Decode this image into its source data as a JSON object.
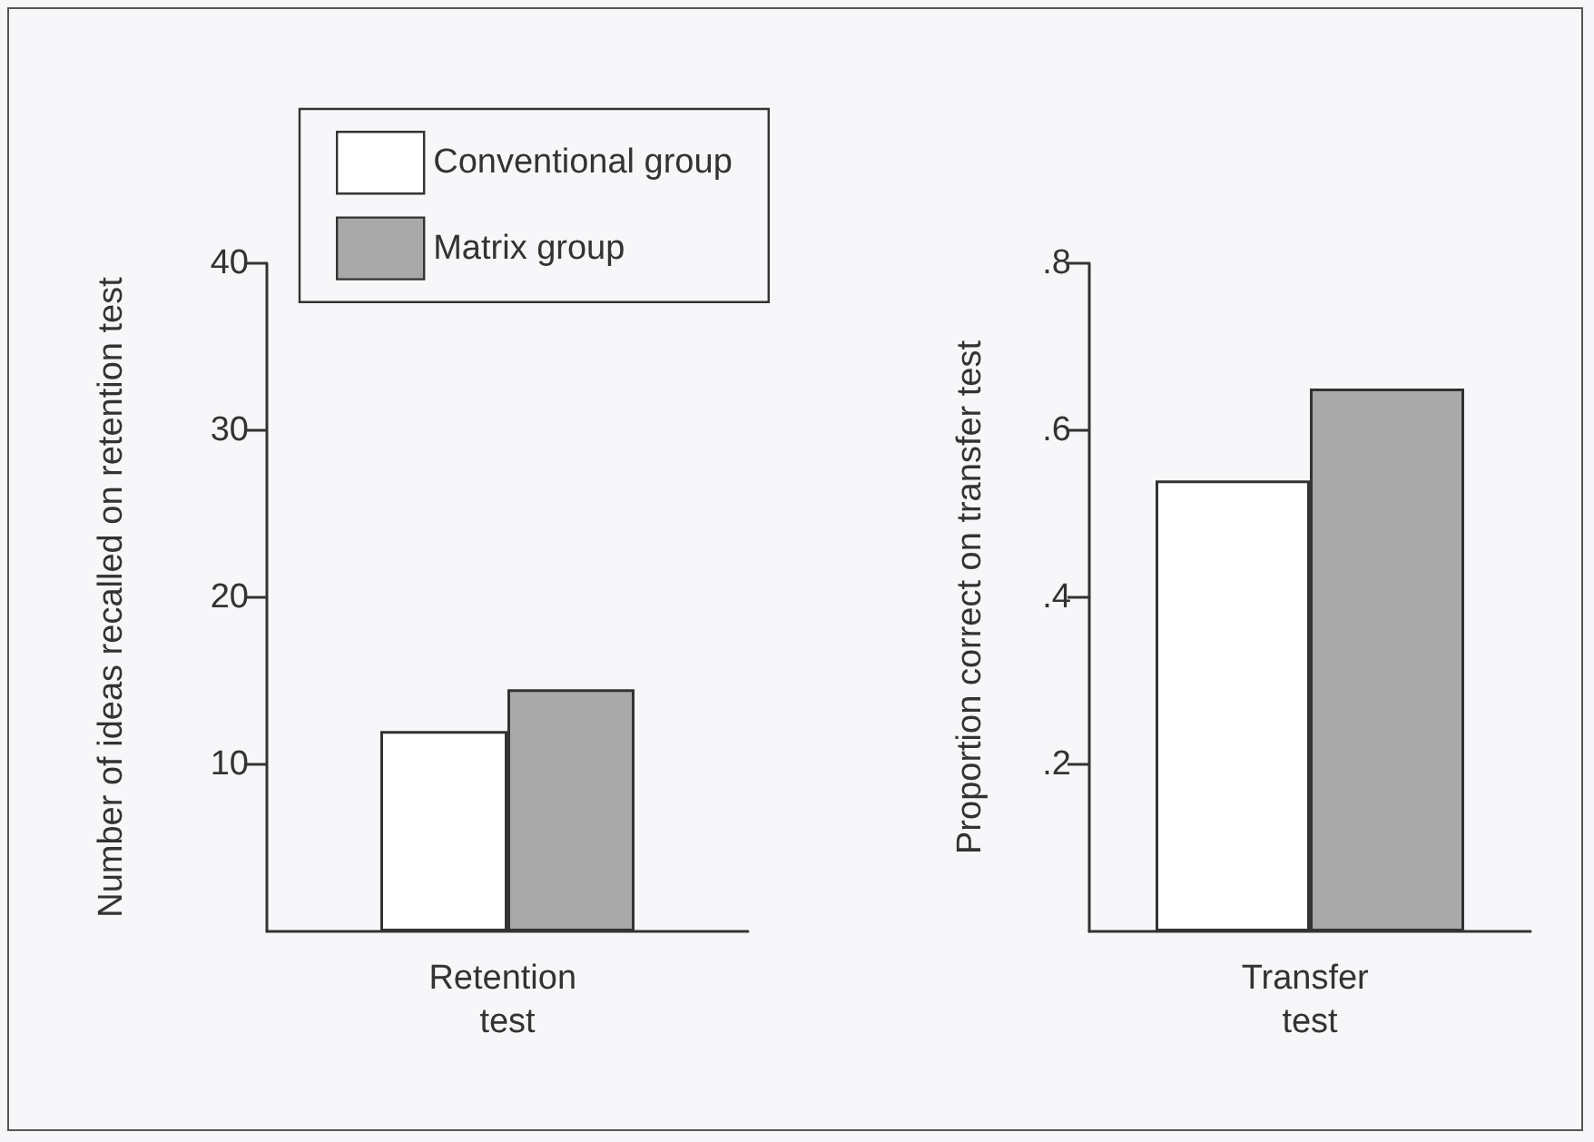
{
  "chart_data": [
    {
      "type": "bar",
      "categories": [
        "Retention test"
      ],
      "ylabel": "Number of ideas recalled on retention test",
      "ylim": [
        0,
        40
      ],
      "yticks": [
        10,
        20,
        30,
        40
      ],
      "legend": "top",
      "series": [
        {
          "name": "Conventional group",
          "color": "#ffffff",
          "values": [
            12
          ]
        },
        {
          "name": "Matrix group",
          "color": "#a9a9a9",
          "values": [
            14.5
          ]
        }
      ]
    },
    {
      "type": "bar",
      "categories": [
        "Transfer test"
      ],
      "ylabel": "Proportion correct on transfer test",
      "ylim": [
        0,
        0.8
      ],
      "yticks": [
        {
          "value": 0.2,
          "label": ".2"
        },
        {
          "value": 0.4,
          "label": ".4"
        },
        {
          "value": 0.6,
          "label": ".6"
        },
        {
          "value": 0.8,
          "label": ".8"
        }
      ],
      "series": [
        {
          "color": "#ffffff",
          "values": [
            0.54
          ]
        },
        {
          "color": "#a9a9a9",
          "values": [
            0.65
          ]
        }
      ]
    }
  ]
}
